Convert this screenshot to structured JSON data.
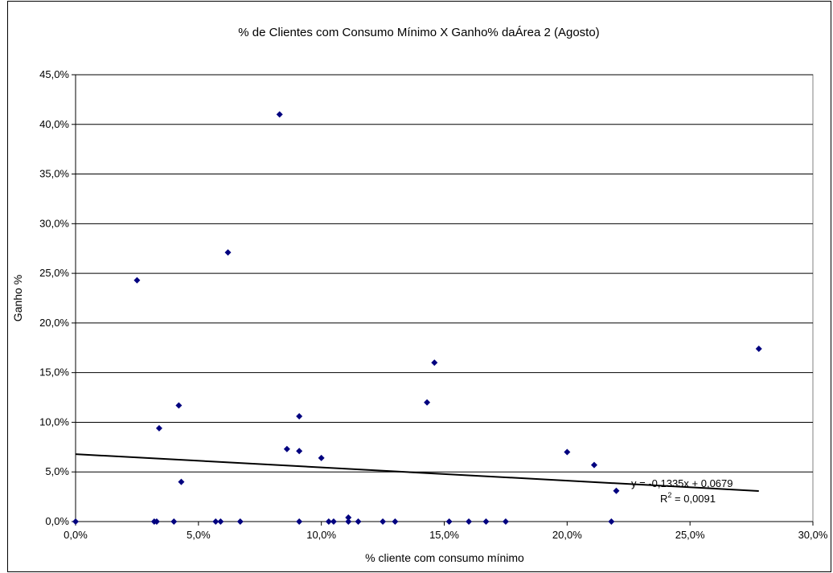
{
  "chart_data": {
    "type": "scatter",
    "title": "% de Clientes com Consumo Mínimo X Ganho% daÁrea 2 (Agosto)",
    "xlabel": "% cliente com consumo mínimo",
    "ylabel": "Ganho %",
    "xlim": [
      0,
      0.3
    ],
    "ylim": [
      0,
      0.45
    ],
    "x_ticks": [
      "0,0%",
      "5,0%",
      "10,0%",
      "15,0%",
      "20,0%",
      "25,0%",
      "30,0%"
    ],
    "x_tick_values": [
      0,
      0.05,
      0.1,
      0.15,
      0.2,
      0.25,
      0.3
    ],
    "y_ticks": [
      "0,0%",
      "5,0%",
      "10,0%",
      "15,0%",
      "20,0%",
      "25,0%",
      "30,0%",
      "35,0%",
      "40,0%",
      "45,0%"
    ],
    "y_tick_values": [
      0,
      0.05,
      0.1,
      0.15,
      0.2,
      0.25,
      0.3,
      0.35,
      0.4,
      0.45
    ],
    "grid": "horizontal",
    "marker_color": "#00007f",
    "points": [
      {
        "x": 0.0,
        "y": 0.0
      },
      {
        "x": 0.025,
        "y": 0.243
      },
      {
        "x": 0.032,
        "y": 0.0
      },
      {
        "x": 0.033,
        "y": 0.0
      },
      {
        "x": 0.034,
        "y": 0.094
      },
      {
        "x": 0.04,
        "y": 0.0
      },
      {
        "x": 0.042,
        "y": 0.117
      },
      {
        "x": 0.043,
        "y": 0.04
      },
      {
        "x": 0.057,
        "y": 0.0
      },
      {
        "x": 0.059,
        "y": 0.0
      },
      {
        "x": 0.062,
        "y": 0.271
      },
      {
        "x": 0.067,
        "y": 0.0
      },
      {
        "x": 0.083,
        "y": 0.41
      },
      {
        "x": 0.086,
        "y": 0.073
      },
      {
        "x": 0.091,
        "y": 0.071
      },
      {
        "x": 0.091,
        "y": 0.106
      },
      {
        "x": 0.091,
        "y": 0.0
      },
      {
        "x": 0.1,
        "y": 0.064
      },
      {
        "x": 0.103,
        "y": 0.0
      },
      {
        "x": 0.105,
        "y": 0.0
      },
      {
        "x": 0.111,
        "y": 0.0
      },
      {
        "x": 0.111,
        "y": 0.004
      },
      {
        "x": 0.115,
        "y": 0.0
      },
      {
        "x": 0.125,
        "y": 0.0
      },
      {
        "x": 0.13,
        "y": 0.0
      },
      {
        "x": 0.143,
        "y": 0.12
      },
      {
        "x": 0.146,
        "y": 0.16
      },
      {
        "x": 0.152,
        "y": 0.0
      },
      {
        "x": 0.16,
        "y": 0.0
      },
      {
        "x": 0.167,
        "y": 0.0
      },
      {
        "x": 0.175,
        "y": 0.0
      },
      {
        "x": 0.2,
        "y": 0.07
      },
      {
        "x": 0.211,
        "y": 0.057
      },
      {
        "x": 0.218,
        "y": 0.0
      },
      {
        "x": 0.22,
        "y": 0.031
      },
      {
        "x": 0.278,
        "y": 0.174
      }
    ],
    "trendline": {
      "slope": -0.1335,
      "intercept": 0.0679,
      "x_range": [
        0,
        0.278
      ],
      "equation": "y = -0,1335x + 0,0679",
      "r2_prefix": "R",
      "r2_sup": "2",
      "r2_value": " = 0,0091",
      "color": "#000000"
    }
  }
}
